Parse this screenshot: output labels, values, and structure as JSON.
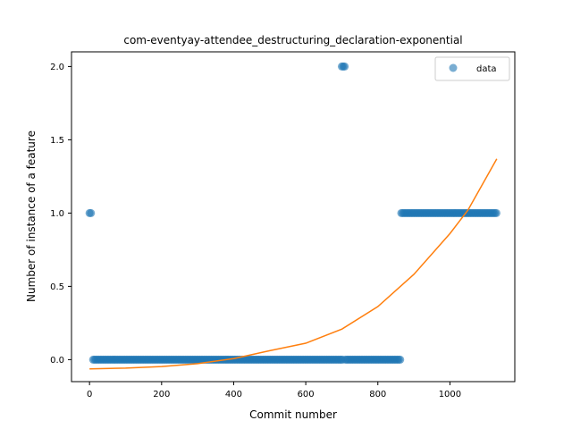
{
  "chart_data": {
    "type": "scatter",
    "title": "com-eventyay-attendee_destructuring_declaration-exponential",
    "xlabel": "Commit number",
    "ylabel": "Number of instance of a feature",
    "xlim": [
      -50,
      1180
    ],
    "ylim": [
      -0.15,
      2.1
    ],
    "xticks": [
      0,
      200,
      400,
      600,
      800,
      1000
    ],
    "yticks": [
      0.0,
      0.5,
      1.0,
      1.5,
      2.0
    ],
    "ytick_labels": [
      "0.0",
      "0.5",
      "1.0",
      "1.5",
      "2.0"
    ],
    "grid": false,
    "legend": {
      "position": "top-right",
      "entries": [
        "data"
      ]
    },
    "series": [
      {
        "name": "data",
        "kind": "points",
        "color": "#1f77b4",
        "groups": [
          {
            "x_start": 0,
            "x_end": 5,
            "y": 1
          },
          {
            "x_start": 10,
            "x_end": 705,
            "y": 0
          },
          {
            "x_start": 700,
            "x_end": 710,
            "y": 2
          },
          {
            "x_start": 710,
            "x_end": 865,
            "y": 0
          },
          {
            "x_start": 865,
            "x_end": 1130,
            "y": 1
          }
        ]
      },
      {
        "kind": "fit-line",
        "color": "#ff7f0e",
        "model": "exponential",
        "x_range": [
          0,
          1130
        ],
        "points": [
          [
            0,
            -0.063
          ],
          [
            100,
            -0.058
          ],
          [
            200,
            -0.047
          ],
          [
            300,
            -0.027
          ],
          [
            400,
            0.007
          ],
          [
            500,
            0.061
          ],
          [
            600,
            0.112
          ],
          [
            700,
            0.208
          ],
          [
            800,
            0.362
          ],
          [
            900,
            0.582
          ],
          [
            1000,
            0.86
          ],
          [
            1050,
            1.02
          ],
          [
            1130,
            1.37
          ]
        ]
      }
    ]
  }
}
